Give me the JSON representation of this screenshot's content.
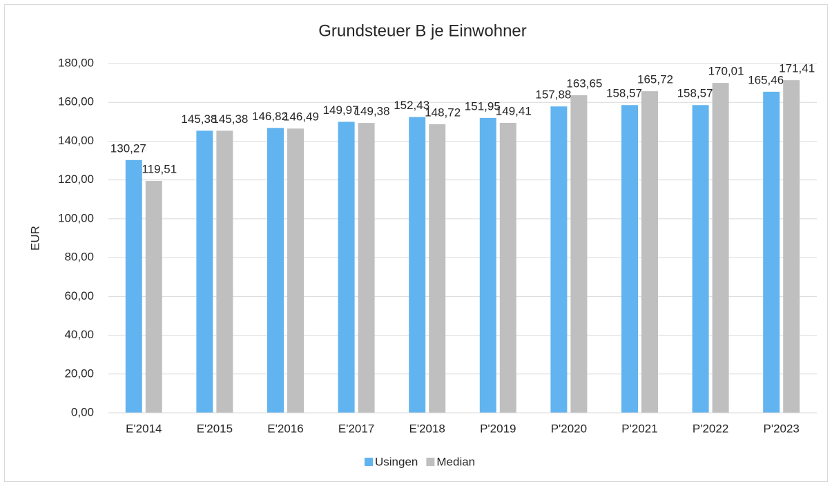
{
  "chart_data": {
    "type": "bar",
    "title": "Grundsteuer B je Einwohner",
    "y_label": "EUR",
    "categories": [
      "E'2014",
      "E'2015",
      "E'2016",
      "E'2017",
      "E'2018",
      "P'2019",
      "P'2020",
      "P'2021",
      "P'2022",
      "P'2023"
    ],
    "series": [
      {
        "name": "Usingen",
        "color": "#62b4f0",
        "values": [
          130.27,
          145.38,
          146.82,
          149.97,
          152.43,
          151.95,
          157.88,
          158.57,
          158.57,
          165.46
        ],
        "value_labels": [
          "130,27",
          "145,38",
          "146,82",
          "149,97",
          "152,43",
          "151,95",
          "157,88",
          "158,57",
          "158,57",
          "165,46"
        ]
      },
      {
        "name": "Median",
        "color": "#bfbfbf",
        "values": [
          119.51,
          145.38,
          146.49,
          149.38,
          148.72,
          149.41,
          163.65,
          165.72,
          170.01,
          171.41
        ],
        "value_labels": [
          "119,51",
          "145,38",
          "146,49",
          "149,38",
          "148,72",
          "149,41",
          "163,65",
          "165,72",
          "170,01",
          "171,41"
        ]
      }
    ],
    "ylim": [
      0,
      180
    ],
    "yticks": [
      {
        "value": 0,
        "label": "0,00"
      },
      {
        "value": 20,
        "label": "20,00"
      },
      {
        "value": 40,
        "label": "40,00"
      },
      {
        "value": 60,
        "label": "60,00"
      },
      {
        "value": 80,
        "label": "80,00"
      },
      {
        "value": 100,
        "label": "100,00"
      },
      {
        "value": 120,
        "label": "120,00"
      },
      {
        "value": 140,
        "label": "140,00"
      },
      {
        "value": 160,
        "label": "160,00"
      },
      {
        "value": 180,
        "label": "180,00"
      }
    ],
    "grid": true,
    "legend": "bottom"
  }
}
